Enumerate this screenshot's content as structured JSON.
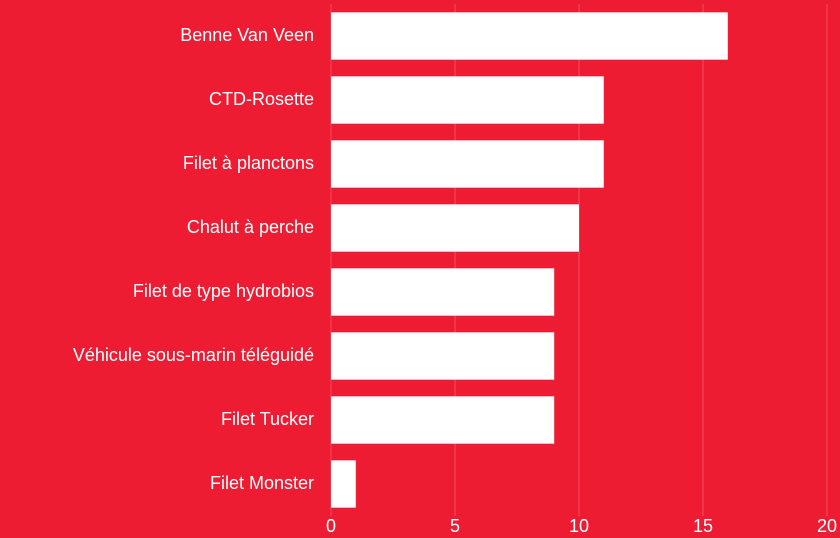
{
  "chart_data": {
    "type": "barh",
    "categories": [
      "Benne Van Veen",
      "CTD-Rosette",
      "Filet à planctons",
      "Chalut à perche",
      "Filet de type hydrobios",
      "Véhicule sous-marin téléguidé",
      "Filet Tucker",
      "Filet Monster"
    ],
    "values": [
      16,
      11,
      11,
      10,
      9,
      9,
      9,
      1
    ],
    "color": "#ffffff",
    "xlim": [
      0,
      20
    ],
    "xticks": [
      0,
      5,
      10,
      15,
      20
    ],
    "grid": true
  }
}
